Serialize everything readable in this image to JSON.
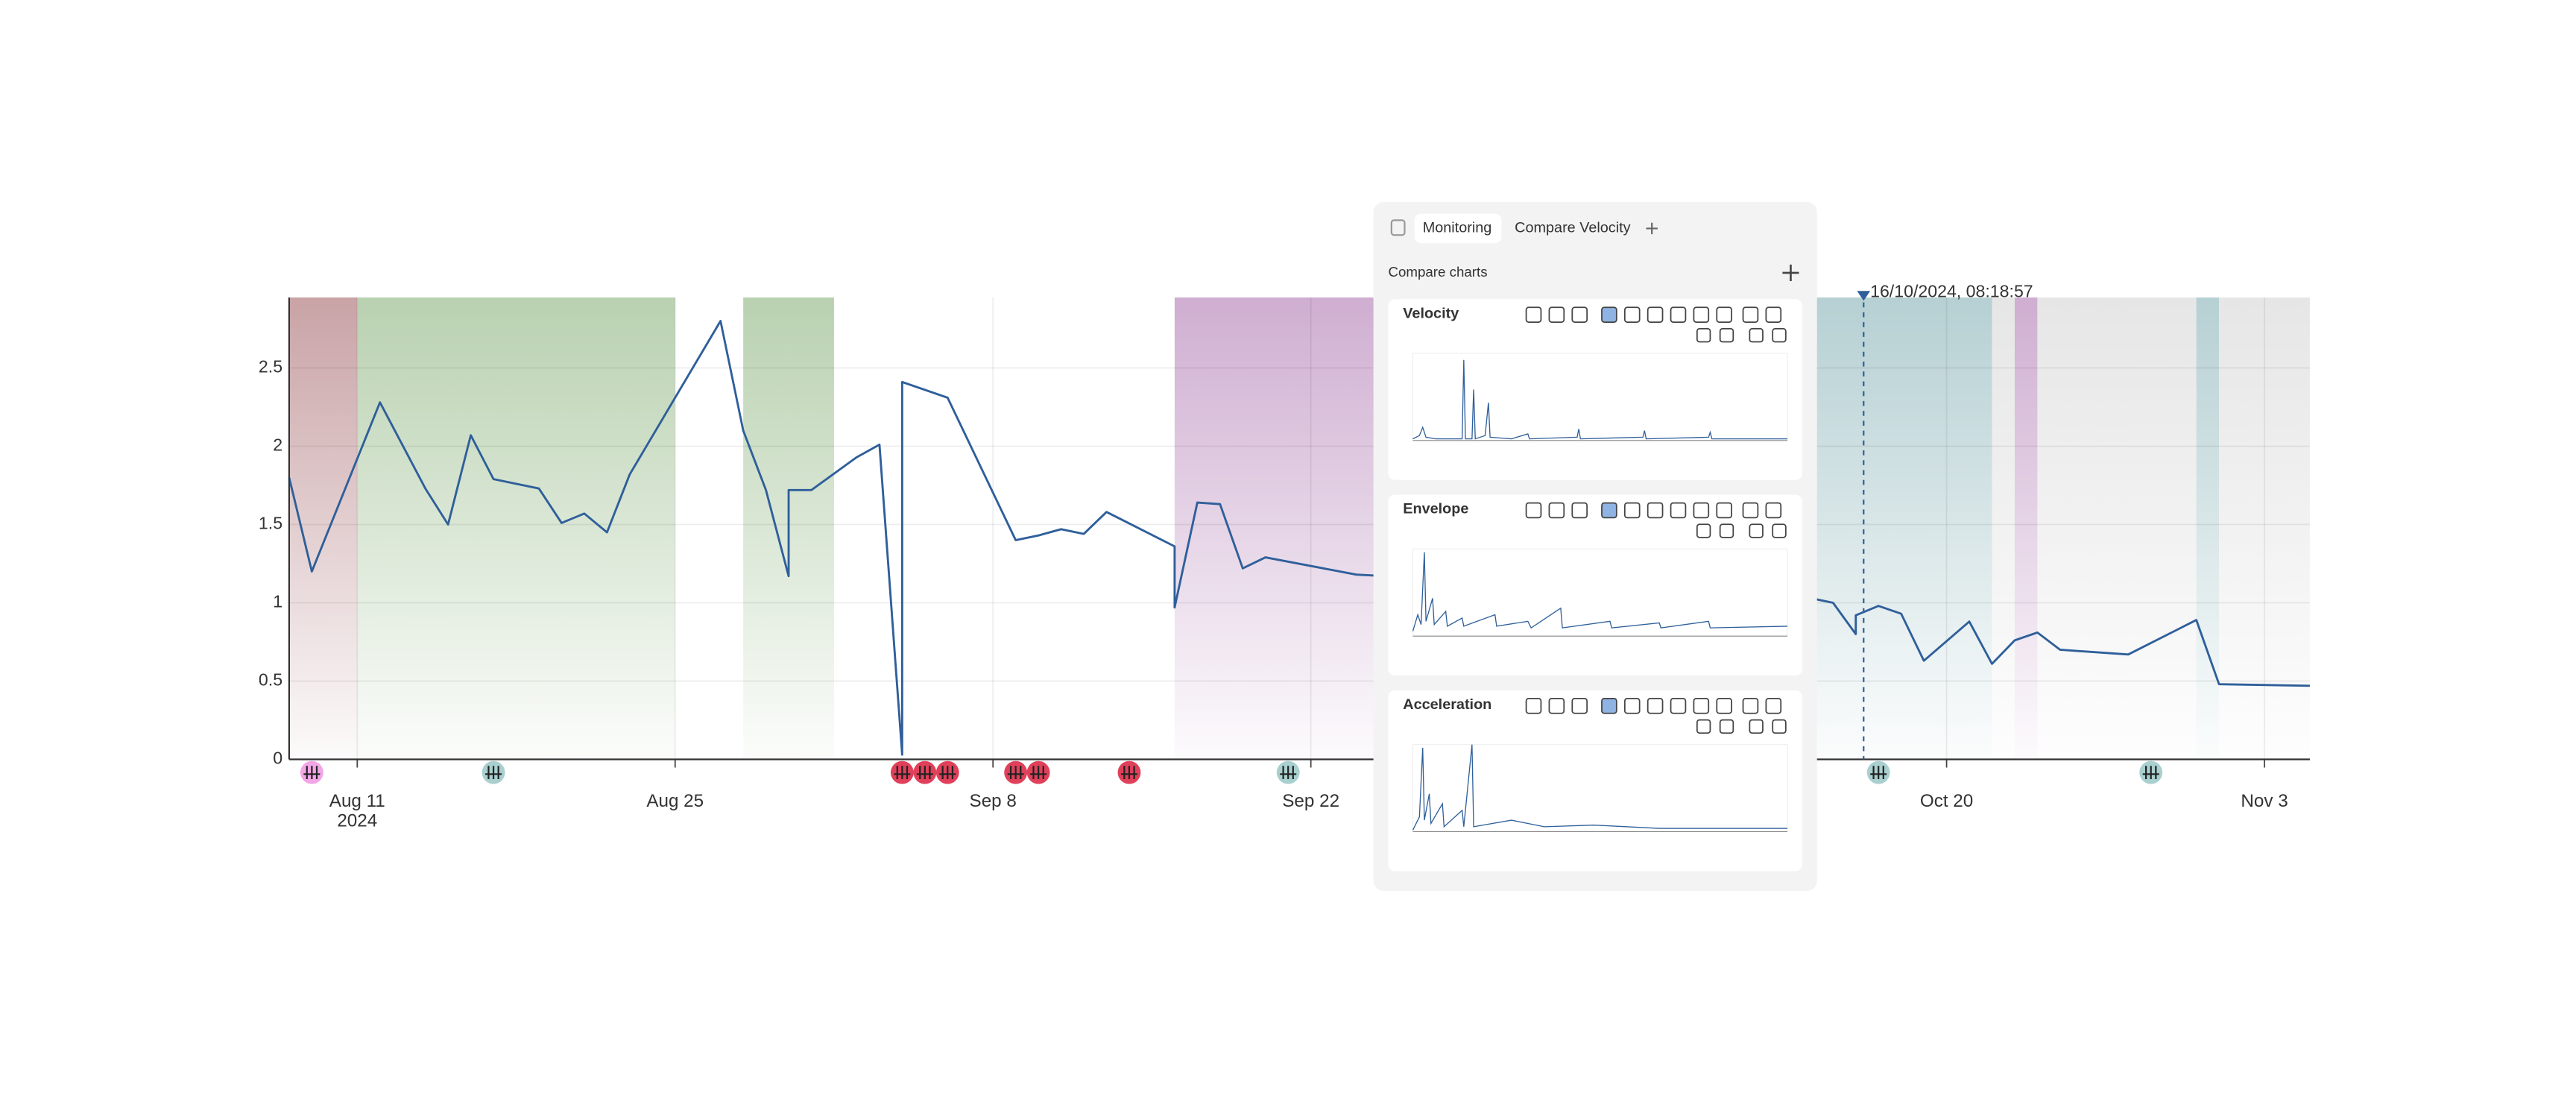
{
  "chart_data": {
    "type": "line",
    "xlim": [
      "2024-08-08",
      "2024-11-05"
    ],
    "ylim": [
      0,
      2.95
    ],
    "yticks": [
      0,
      0.5,
      1,
      1.5,
      2,
      2.5
    ],
    "xticks": [
      {
        "value": "2024-08-11",
        "label": "Aug 11"
      },
      {
        "value": "2024-08-25",
        "label": "Aug 25"
      },
      {
        "value": "2024-09-08",
        "label": "Sep 8"
      },
      {
        "value": "2024-09-22",
        "label": "Sep 22"
      },
      {
        "value": "2024-10-20",
        "label": "Oct 20"
      },
      {
        "value": "2024-11-03",
        "label": "Nov 3"
      }
    ],
    "xtick_year": "2024",
    "grid": true,
    "x": [
      "2024-08-08",
      "2024-08-09",
      "2024-08-12",
      "2024-08-14",
      "2024-08-15",
      "2024-08-16",
      "2024-08-17",
      "2024-08-19",
      "2024-08-20",
      "2024-08-21",
      "2024-08-22",
      "2024-08-23",
      "2024-08-27",
      "2024-08-28",
      "2024-08-29",
      "2024-08-30",
      "2024-08-30",
      "2024-08-31",
      "2024-09-02",
      "2024-09-03",
      "2024-09-04",
      "2024-09-04",
      "2024-09-06",
      "2024-09-09",
      "2024-09-10",
      "2024-09-11",
      "2024-09-12",
      "2024-09-13",
      "2024-09-16",
      "2024-09-16",
      "2024-09-17",
      "2024-09-18",
      "2024-09-19",
      "2024-09-20",
      "2024-09-24",
      "2024-10-14",
      "2024-10-15",
      "2024-10-16",
      "2024-10-16",
      "2024-10-17",
      "2024-10-18",
      "2024-10-19",
      "2024-10-21",
      "2024-10-22",
      "2024-10-23",
      "2024-10-24",
      "2024-10-25",
      "2024-10-28",
      "2024-10-31",
      "2024-11-01",
      "2024-11-05"
    ],
    "series": [
      {
        "color": "#2f5f9a",
        "values": [
          1.8,
          1.2,
          2.28,
          1.73,
          1.5,
          2.07,
          1.79,
          1.73,
          1.51,
          1.57,
          1.45,
          1.82,
          2.8,
          2.1,
          1.72,
          1.17,
          1.72,
          1.72,
          1.93,
          2.01,
          0.03,
          2.41,
          2.31,
          1.4,
          1.43,
          1.47,
          1.44,
          1.58,
          1.36,
          0.97,
          1.64,
          1.63,
          1.22,
          1.29,
          1.18,
          1.03,
          1.0,
          0.8,
          0.92,
          0.98,
          0.93,
          0.63,
          0.88,
          0.61,
          0.76,
          0.81,
          0.7,
          0.67,
          0.89,
          0.48,
          0.47
        ]
      }
    ],
    "bands": [
      {
        "start": "2024-08-08",
        "end": "2024-08-11",
        "color": "#c9a3a6"
      },
      {
        "start": "2024-08-11",
        "end": "2024-08-25",
        "color": "#b9d1b0"
      },
      {
        "start": "2024-08-28",
        "end": "2024-08-30",
        "color": "#b9d1b0"
      },
      {
        "start": "2024-08-30",
        "end": "2024-09-01",
        "color": "#b9d1b0"
      },
      {
        "start": "2024-09-16",
        "end": "2024-10-05",
        "color": "#cfaed1"
      },
      {
        "start": "2024-10-05",
        "end": "2024-10-22",
        "color": "#b6d0d3"
      },
      {
        "start": "2024-10-22",
        "end": "2024-10-23",
        "color": "#e6e6e6"
      },
      {
        "start": "2024-10-23",
        "end": "2024-10-24",
        "color": "#cfaed1"
      },
      {
        "start": "2024-10-24",
        "end": "2024-10-31",
        "color": "#e6e6e6"
      },
      {
        "start": "2024-10-31",
        "end": "2024-11-01",
        "color": "#b6d0d3"
      },
      {
        "start": "2024-11-01",
        "end": "2024-11-05",
        "color": "#e6e6e6"
      }
    ],
    "events": [
      {
        "x": "2024-08-09",
        "color": "#f2a6e6"
      },
      {
        "x": "2024-08-17",
        "color": "#a9cfcf"
      },
      {
        "x": "2024-09-04",
        "color": "#e0405a"
      },
      {
        "x": "2024-09-05",
        "color": "#e0405a"
      },
      {
        "x": "2024-09-06",
        "color": "#e0405a"
      },
      {
        "x": "2024-09-09",
        "color": "#e0405a"
      },
      {
        "x": "2024-09-10",
        "color": "#e0405a"
      },
      {
        "x": "2024-09-14",
        "color": "#e0405a"
      },
      {
        "x": "2024-09-21",
        "color": "#a9cfcf"
      },
      {
        "x": "2024-10-17",
        "color": "#a9cfcf"
      },
      {
        "x": "2024-10-29",
        "color": "#a9cfcf"
      }
    ],
    "cursor": {
      "x": "2024-10-16T08:18:57",
      "label": "16/10/2024, 08:18:57"
    }
  },
  "panel": {
    "tabs": [
      "Monitoring",
      "Compare Velocity"
    ],
    "section_title": "Compare charts",
    "cards": [
      {
        "title": "Velocity"
      },
      {
        "title": "Envelope"
      },
      {
        "title": "Acceleration"
      }
    ]
  }
}
